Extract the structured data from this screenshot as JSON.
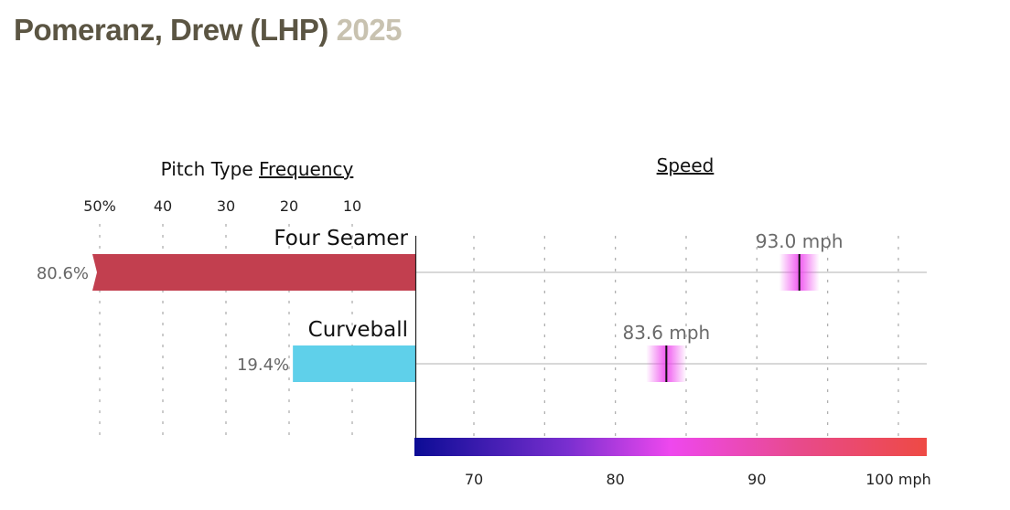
{
  "header": {
    "name": "Pomeranz, Drew (LHP)",
    "year": "2025"
  },
  "chart_data": [
    {
      "type": "bar",
      "title_prefix": "Pitch Type ",
      "title_link": "Frequency",
      "categories": [
        "Four Seamer",
        "Curveball"
      ],
      "values": [
        80.6,
        19.4
      ],
      "value_labels": [
        "80.6%",
        "19.4%"
      ],
      "xlim": [
        0,
        50
      ],
      "ticks": [
        50,
        40,
        30,
        20,
        10
      ],
      "tick_labels": [
        "50%",
        "40",
        "30",
        "20",
        "10"
      ],
      "orientation": "right-to-left",
      "colors": [
        "#c23f4f",
        "#5fd0ea"
      ]
    },
    {
      "type": "scatter",
      "title": "Speed",
      "categories": [
        "Four Seamer",
        "Curveball"
      ],
      "values": [
        93.0,
        83.6
      ],
      "value_labels": [
        "93.0 mph",
        "83.6 mph"
      ],
      "xlim": [
        65.5,
        102.5
      ],
      "ticks": [
        70,
        75,
        80,
        85,
        90,
        95,
        100
      ],
      "tick_labels": [
        "70",
        "80",
        "90",
        "100 mph"
      ],
      "labeled_ticks": [
        70,
        80,
        90,
        100
      ],
      "colorbar": [
        "#0c0c95",
        "#7a2fd0",
        "#ee48ee",
        "#e84a8c",
        "#ee4a44"
      ]
    }
  ]
}
